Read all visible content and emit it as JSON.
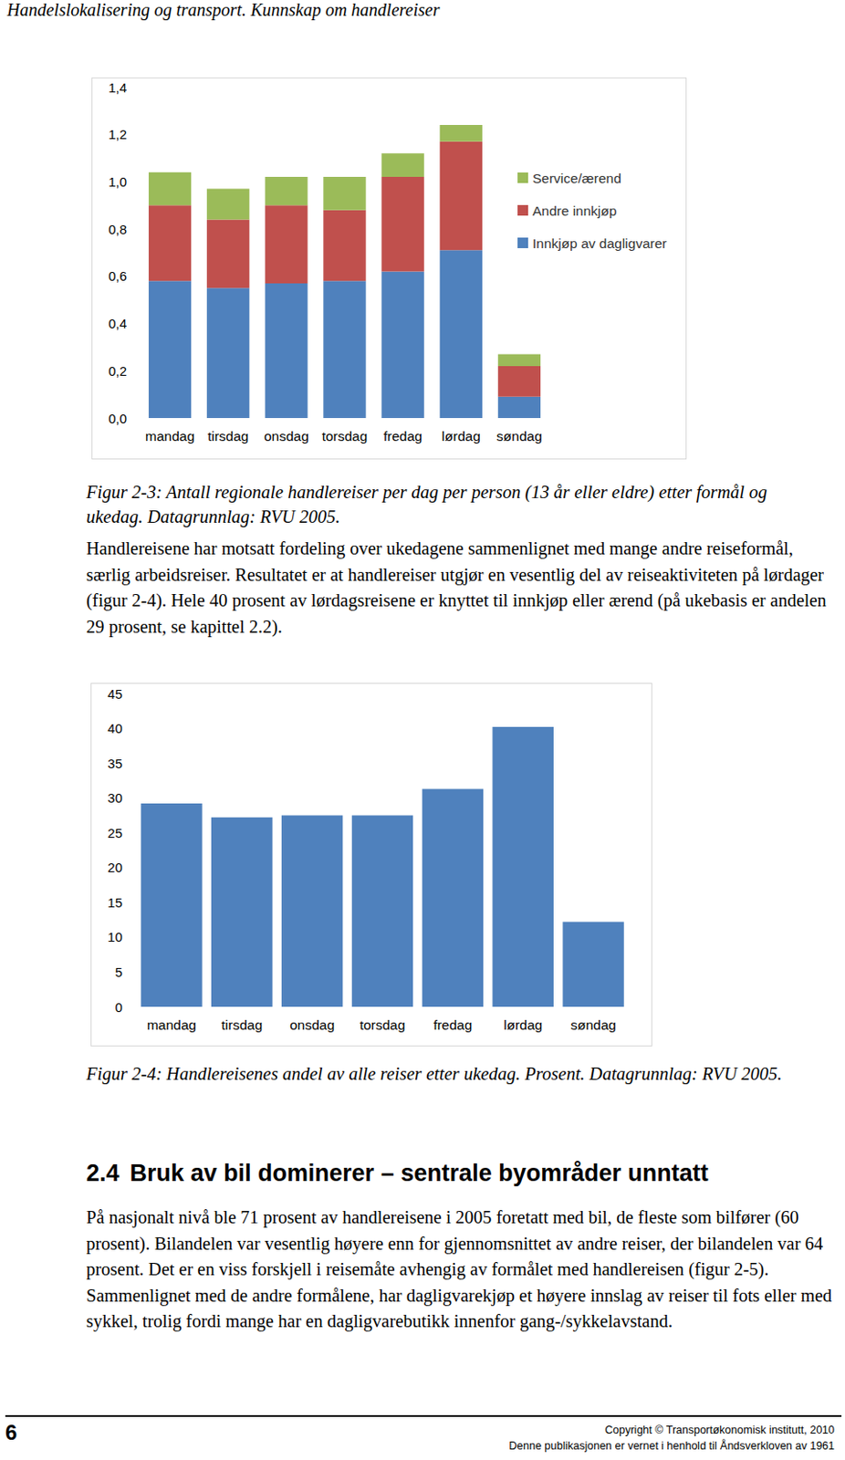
{
  "document": {
    "header": "Handelslokalisering og transport. Kunnskap om handlereiser",
    "caption_1": "Figur 2-3: Antall regionale handlereiser per dag per person (13 år eller eldre) etter formål og ukedag. Datagrunnlag: RVU 2005.",
    "paragraph_1": "Handlereisene har motsatt fordeling over ukedagene sammenlignet med mange andre reiseformål, særlig arbeidsreiser. Resultatet er at handlereiser utgjør en vesentlig del av reiseaktiviteten på lørdager (figur 2-4). Hele 40 prosent av lørdagsreisene er knyttet til innkjøp eller ærend (på ukebasis er andelen 29 prosent, se kapittel 2.2).",
    "caption_2": "Figur 2-4: Handlereisenes andel av alle reiser etter ukedag. Prosent. Datagrunnlag: RVU 2005.",
    "section": {
      "number": "2.4",
      "title": "Bruk av bil dominerer – sentrale byområder unntatt"
    },
    "paragraph_2": "På nasjonalt nivå ble 71 prosent av handlereisene i 2005 foretatt med bil, de fleste som bilfører (60 prosent). Bilandelen var vesentlig høyere enn for gjennomsnittet av andre reiser, der bilandelen var 64 prosent. Det er en viss forskjell i reisemåte avhengig av formålet med handlereisen (figur 2-5). Sammenlignet med de andre formålene, har dagligvarekjøp et høyere innslag av reiser til fots eller med sykkel, trolig fordi mange har en dagligvarebutikk innenfor gang-/sykkelavstand.",
    "footer": {
      "page": "6",
      "copyright": "Copyright © Transportøkonomisk institutt, 2010",
      "notice": "Denne publikasjonen er vernet i henhold til Åndsverkloven av 1961"
    }
  },
  "chart_data": [
    {
      "type": "bar",
      "stacked": true,
      "grid": false,
      "legend": "right",
      "categories": [
        "mandag",
        "tirsdag",
        "onsdag",
        "torsdag",
        "fredag",
        "lørdag",
        "søndag"
      ],
      "series": [
        {
          "name": "Innkjøp av dagligvarer",
          "color": "#4f81bd",
          "values": [
            0.58,
            0.55,
            0.57,
            0.58,
            0.62,
            0.71,
            0.09
          ]
        },
        {
          "name": "Andre innkjøp",
          "color": "#c0504d",
          "values": [
            0.32,
            0.29,
            0.33,
            0.3,
            0.4,
            0.46,
            0.13
          ]
        },
        {
          "name": "Service/ærend",
          "color": "#9bbb59",
          "values": [
            0.14,
            0.13,
            0.12,
            0.14,
            0.1,
            0.07,
            0.05
          ]
        }
      ],
      "ylim": [
        0,
        1.4
      ],
      "yticks": [
        {
          "value": 0,
          "label": "0,0"
        },
        {
          "value": 0.2,
          "label": "0,2"
        },
        {
          "value": 0.4,
          "label": "0,4"
        },
        {
          "value": 0.6,
          "label": "0,6"
        },
        {
          "value": 0.8,
          "label": "0,8"
        },
        {
          "value": 1.0,
          "label": "1,0"
        },
        {
          "value": 1.2,
          "label": "1,2"
        },
        {
          "value": 1.4,
          "label": "1,4"
        }
      ]
    },
    {
      "type": "bar",
      "grid": false,
      "color": "#4f81bd",
      "categories": [
        "mandag",
        "tirsdag",
        "onsdag",
        "torsdag",
        "fredag",
        "lørdag",
        "søndag"
      ],
      "values": [
        29.2,
        27.2,
        27.5,
        27.5,
        31.3,
        40.2,
        12.2
      ],
      "ylim": [
        0,
        45
      ],
      "yticks": [
        0,
        5,
        10,
        15,
        20,
        25,
        30,
        35,
        40,
        45
      ]
    }
  ]
}
